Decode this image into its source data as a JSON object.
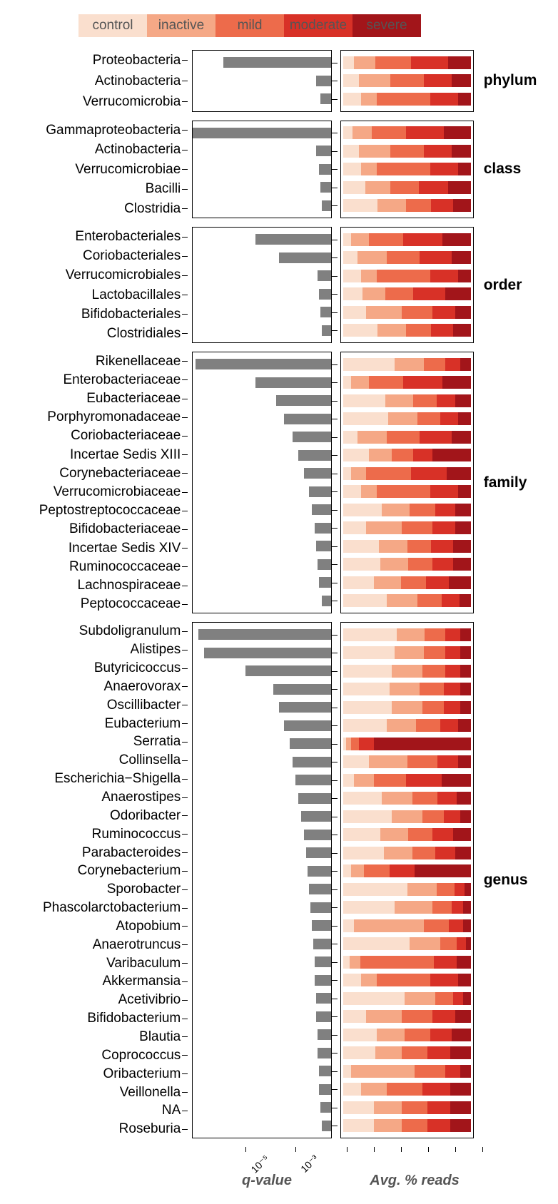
{
  "colors": {
    "control": "#fadfce",
    "inactive": "#f5a886",
    "mild": "#ed6b4b",
    "moderate": "#d83127",
    "severe": "#a2151a",
    "bar_gray": "#808080",
    "border": "#000000",
    "bg": "#ffffff",
    "legend_text": "#555555"
  },
  "legend": [
    "control",
    "inactive",
    "mild",
    "moderate",
    "severe"
  ],
  "axis": {
    "q_label": "q-value",
    "s_label": "Avg. % reads",
    "q_ticks": [
      {
        "label": "10⁻⁵",
        "pos_pct": 35
      },
      {
        "label": "10⁻³",
        "pos_pct": 70
      }
    ],
    "s_tick_count": 6
  },
  "row_height": 25.5,
  "groups": [
    {
      "name": "phylum",
      "rows": [
        {
          "taxon": "Proteobacteria",
          "q": 78,
          "stack": [
            8,
            17,
            28,
            29,
            18
          ]
        },
        {
          "taxon": "Actinobacteria",
          "q": 11,
          "stack": [
            12,
            25,
            26,
            22,
            15
          ]
        },
        {
          "taxon": "Verrucomicrobia",
          "q": 8,
          "stack": [
            14,
            12,
            42,
            22,
            10
          ]
        }
      ]
    },
    {
      "name": "class",
      "rows": [
        {
          "taxon": "Gammaproteobacteria",
          "q": 100,
          "stack": [
            7,
            15,
            27,
            30,
            21
          ]
        },
        {
          "taxon": "Actinobacteria",
          "q": 11,
          "stack": [
            12,
            25,
            26,
            22,
            15
          ]
        },
        {
          "taxon": "Verrucomicrobiae",
          "q": 9,
          "stack": [
            14,
            12,
            42,
            22,
            10
          ]
        },
        {
          "taxon": "Bacilli",
          "q": 8,
          "stack": [
            17,
            20,
            22,
            23,
            18
          ]
        },
        {
          "taxon": "Clostridia",
          "q": 7,
          "stack": [
            27,
            22,
            20,
            17,
            14
          ]
        }
      ]
    },
    {
      "name": "order",
      "rows": [
        {
          "taxon": "Enterobacteriales",
          "q": 55,
          "stack": [
            6,
            14,
            27,
            31,
            22
          ]
        },
        {
          "taxon": "Coriobacteriales",
          "q": 38,
          "stack": [
            11,
            23,
            26,
            25,
            15
          ]
        },
        {
          "taxon": "Verrucomicrobiales",
          "q": 10,
          "stack": [
            14,
            12,
            42,
            22,
            10
          ]
        },
        {
          "taxon": "Lactobacillales",
          "q": 9,
          "stack": [
            15,
            18,
            22,
            25,
            20
          ]
        },
        {
          "taxon": "Bifidobacteriales",
          "q": 8,
          "stack": [
            18,
            28,
            24,
            18,
            12
          ]
        },
        {
          "taxon": "Clostridiales",
          "q": 7,
          "stack": [
            27,
            22,
            20,
            17,
            14
          ]
        }
      ]
    },
    {
      "name": "family",
      "rows": [
        {
          "taxon": "Rikenellaceae",
          "q": 98,
          "stack": [
            40,
            23,
            17,
            12,
            8
          ]
        },
        {
          "taxon": "Enterobacteriaceae",
          "q": 55,
          "stack": [
            6,
            14,
            27,
            31,
            22
          ]
        },
        {
          "taxon": "Eubacteriaceae",
          "q": 40,
          "stack": [
            33,
            22,
            18,
            15,
            12
          ]
        },
        {
          "taxon": "Porphyromonadaceae",
          "q": 34,
          "stack": [
            35,
            23,
            18,
            14,
            10
          ]
        },
        {
          "taxon": "Coriobacteriaceae",
          "q": 28,
          "stack": [
            11,
            23,
            26,
            25,
            15
          ]
        },
        {
          "taxon": "Incertae Sedis XIII",
          "q": 24,
          "stack": [
            20,
            18,
            17,
            15,
            30
          ]
        },
        {
          "taxon": "Corynebacteriaceae",
          "q": 20,
          "stack": [
            6,
            12,
            35,
            28,
            19
          ]
        },
        {
          "taxon": "Verrucomicrobiaceae",
          "q": 16,
          "stack": [
            14,
            12,
            42,
            22,
            10
          ]
        },
        {
          "taxon": "Peptostreptococcaceae",
          "q": 14,
          "stack": [
            30,
            22,
            20,
            16,
            12
          ]
        },
        {
          "taxon": "Bifidobacteriaceae",
          "q": 12,
          "stack": [
            18,
            28,
            24,
            18,
            12
          ]
        },
        {
          "taxon": "Incertae Sedis XIV",
          "q": 11,
          "stack": [
            28,
            22,
            19,
            17,
            14
          ]
        },
        {
          "taxon": "Ruminococcaceae",
          "q": 10,
          "stack": [
            29,
            22,
            19,
            16,
            14
          ]
        },
        {
          "taxon": "Lachnospiraceae",
          "q": 9,
          "stack": [
            24,
            21,
            20,
            18,
            17
          ]
        },
        {
          "taxon": "Peptococcaceae",
          "q": 7,
          "stack": [
            34,
            24,
            19,
            14,
            9
          ]
        }
      ]
    },
    {
      "name": "genus",
      "rows": [
        {
          "taxon": "Subdoligranulum",
          "q": 96,
          "stack": [
            42,
            22,
            16,
            12,
            8
          ]
        },
        {
          "taxon": "Alistipes",
          "q": 92,
          "stack": [
            40,
            23,
            17,
            12,
            8
          ]
        },
        {
          "taxon": "Butyricicoccus",
          "q": 62,
          "stack": [
            38,
            24,
            18,
            12,
            8
          ]
        },
        {
          "taxon": "Anaerovorax",
          "q": 42,
          "stack": [
            36,
            24,
            19,
            13,
            8
          ]
        },
        {
          "taxon": "Oscillibacter",
          "q": 38,
          "stack": [
            38,
            24,
            17,
            13,
            8
          ]
        },
        {
          "taxon": "Eubacterium",
          "q": 34,
          "stack": [
            34,
            23,
            19,
            14,
            10
          ]
        },
        {
          "taxon": "Serratia",
          "q": 30,
          "stack": [
            2,
            4,
            6,
            12,
            76
          ]
        },
        {
          "taxon": "Collinsella",
          "q": 28,
          "stack": [
            20,
            30,
            24,
            16,
            10
          ]
        },
        {
          "taxon": "Escherichia−Shigella",
          "q": 26,
          "stack": [
            8,
            16,
            25,
            28,
            23
          ]
        },
        {
          "taxon": "Anaerostipes",
          "q": 24,
          "stack": [
            30,
            24,
            20,
            15,
            11
          ]
        },
        {
          "taxon": "Odoribacter",
          "q": 22,
          "stack": [
            38,
            24,
            17,
            13,
            8
          ]
        },
        {
          "taxon": "Ruminococcus",
          "q": 20,
          "stack": [
            29,
            22,
            19,
            16,
            14
          ]
        },
        {
          "taxon": "Parabacteroides",
          "q": 18,
          "stack": [
            32,
            22,
            18,
            16,
            12
          ]
        },
        {
          "taxon": "Corynebacterium",
          "q": 17,
          "stack": [
            6,
            10,
            20,
            20,
            44
          ]
        },
        {
          "taxon": "Sporobacter",
          "q": 16,
          "stack": [
            50,
            23,
            14,
            8,
            5
          ]
        },
        {
          "taxon": "Phascolarctobacterium",
          "q": 15,
          "stack": [
            40,
            30,
            15,
            9,
            6
          ]
        },
        {
          "taxon": "Atopobium",
          "q": 14,
          "stack": [
            8,
            55,
            20,
            11,
            6
          ]
        },
        {
          "taxon": "Anaerotruncus",
          "q": 13,
          "stack": [
            52,
            24,
            13,
            7,
            4
          ]
        },
        {
          "taxon": "Varibaculum",
          "q": 12,
          "stack": [
            5,
            8,
            58,
            18,
            11
          ]
        },
        {
          "taxon": "Akkermansia",
          "q": 12,
          "stack": [
            14,
            12,
            42,
            22,
            10
          ]
        },
        {
          "taxon": "Acetivibrio",
          "q": 11,
          "stack": [
            48,
            24,
            14,
            8,
            6
          ]
        },
        {
          "taxon": "Bifidobacterium",
          "q": 11,
          "stack": [
            18,
            28,
            24,
            18,
            12
          ]
        },
        {
          "taxon": "Blautia",
          "q": 10,
          "stack": [
            26,
            22,
            20,
            17,
            15
          ]
        },
        {
          "taxon": "Coprococcus",
          "q": 10,
          "stack": [
            25,
            21,
            20,
            18,
            16
          ]
        },
        {
          "taxon": "Oribacterium",
          "q": 9,
          "stack": [
            6,
            50,
            24,
            12,
            8
          ]
        },
        {
          "taxon": "Veillonella",
          "q": 9,
          "stack": [
            14,
            20,
            28,
            22,
            16
          ]
        },
        {
          "taxon": "NA",
          "q": 8,
          "stack": [
            24,
            22,
            20,
            18,
            16
          ]
        },
        {
          "taxon": "Roseburia",
          "q": 7,
          "stack": [
            24,
            22,
            20,
            18,
            16
          ]
        }
      ]
    }
  ]
}
